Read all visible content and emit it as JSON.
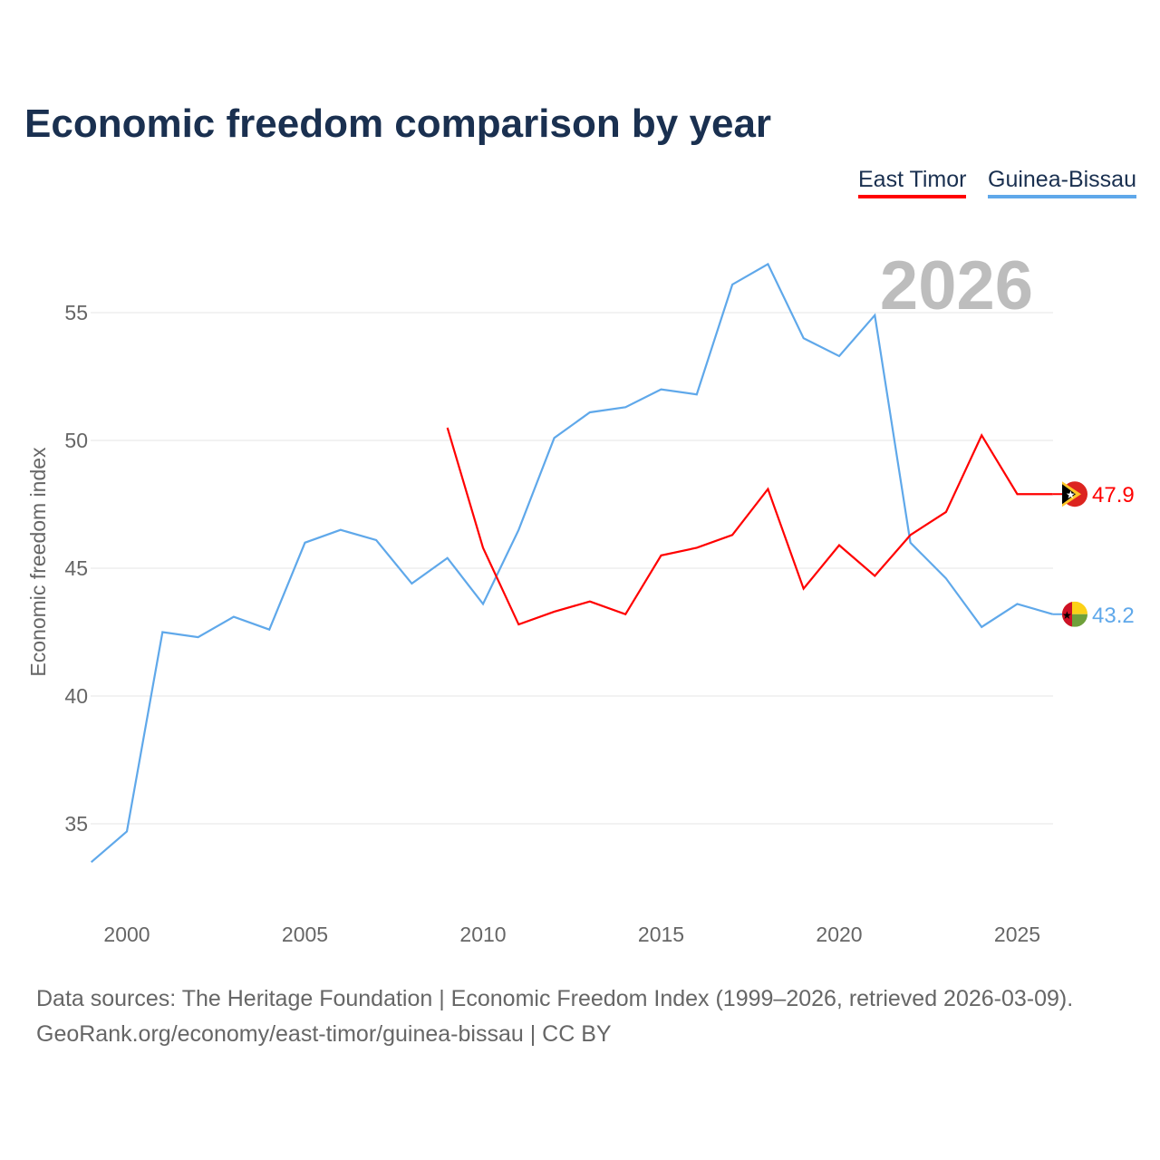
{
  "chart_data": {
    "type": "line",
    "title": "Economic freedom comparison by year",
    "xlabel": "",
    "ylabel": "Economic freedom index",
    "xlim": [
      1999,
      2026
    ],
    "ylim": [
      32,
      58
    ],
    "yticks": [
      35,
      40,
      45,
      50,
      55
    ],
    "xticks": [
      2000,
      2005,
      2010,
      2015,
      2020,
      2025
    ],
    "year_label": "2026",
    "legend_position": "top-right",
    "series": [
      {
        "name": "East Timor",
        "color": "#ff0000",
        "end_label": "47.9",
        "x": [
          2009,
          2010,
          2011,
          2012,
          2013,
          2014,
          2015,
          2016,
          2017,
          2018,
          2019,
          2020,
          2021,
          2022,
          2023,
          2024,
          2025,
          2026
        ],
        "values": [
          50.5,
          45.8,
          42.8,
          43.3,
          43.7,
          43.2,
          45.5,
          45.8,
          46.3,
          48.1,
          44.2,
          45.9,
          44.7,
          46.3,
          47.2,
          50.2,
          47.9,
          47.9
        ]
      },
      {
        "name": "Guinea-Bissau",
        "color": "#5fa8ea",
        "end_label": "43.2",
        "x": [
          1999,
          2000,
          2001,
          2002,
          2003,
          2004,
          2005,
          2006,
          2007,
          2008,
          2009,
          2010,
          2011,
          2012,
          2013,
          2014,
          2015,
          2016,
          2017,
          2018,
          2019,
          2020,
          2021,
          2022,
          2023,
          2024,
          2025,
          2026
        ],
        "values": [
          33.5,
          34.7,
          42.5,
          42.3,
          43.1,
          42.6,
          46.0,
          46.5,
          46.1,
          44.4,
          45.4,
          43.6,
          46.5,
          50.1,
          51.1,
          51.3,
          52.0,
          51.8,
          56.1,
          56.9,
          54.0,
          53.3,
          54.9,
          46.0,
          44.6,
          42.7,
          43.6,
          43.2
        ]
      }
    ]
  },
  "footer": {
    "line1": "Data sources: The Heritage Foundation | Economic Freedom Index (1999–2026, retrieved 2026-03-09).",
    "line2": "GeoRank.org/economy/east-timor/guinea-bissau | CC BY"
  }
}
